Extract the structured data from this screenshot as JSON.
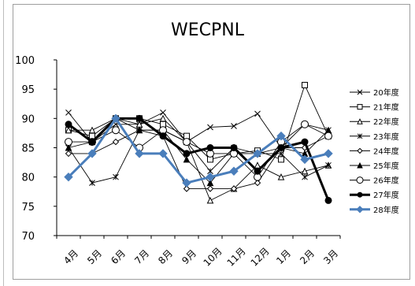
{
  "chart_data": {
    "type": "line",
    "title": "WECPNL",
    "categories": [
      "4月",
      "5月",
      "6月",
      "7月",
      "8月",
      "9月",
      "10月",
      "11月",
      "12月",
      "1月",
      "2月",
      "3月"
    ],
    "ylim": [
      70,
      100
    ],
    "yticks": [
      70,
      75,
      80,
      85,
      90,
      95,
      100
    ],
    "grid": false,
    "legend_position": "right",
    "series": [
      {
        "name": "20年度",
        "marker": "x",
        "color": "#000000",
        "values": [
          91,
          86,
          89,
          89,
          91,
          86,
          88.5,
          88.7,
          90.8,
          85,
          89,
          88
        ]
      },
      {
        "name": "21年度",
        "marker": "square-open",
        "color": "#000000",
        "values": [
          88,
          87,
          90,
          90,
          89,
          87,
          83,
          84,
          84.5,
          83,
          95.7,
          87
        ]
      },
      {
        "name": "22年度",
        "marker": "triangle-open",
        "color": "#000000",
        "values": [
          88,
          88,
          90,
          89,
          90,
          86,
          76,
          78,
          82,
          80,
          81,
          82
        ]
      },
      {
        "name": "23年度",
        "marker": "asterisk",
        "color": "#000000",
        "values": [
          85,
          79,
          80,
          88,
          88,
          86,
          81,
          85,
          84,
          84,
          80,
          82
        ]
      },
      {
        "name": "24年度",
        "marker": "diamond-open",
        "color": "#000000",
        "values": [
          84,
          84,
          86,
          88,
          87,
          78,
          78,
          78,
          79,
          85,
          85,
          87
        ]
      },
      {
        "name": "25年度",
        "marker": "triangle-filled",
        "color": "#000000",
        "values": [
          85,
          86,
          90,
          88,
          88,
          83,
          79,
          84,
          84,
          85,
          84,
          88
        ]
      },
      {
        "name": "26年度",
        "marker": "circle-open",
        "color": "#000000",
        "values": [
          86,
          86,
          88,
          85,
          88,
          86,
          84,
          84,
          80,
          86,
          89,
          87
        ]
      },
      {
        "name": "27年度",
        "marker": "circle-filled",
        "color": "#000000",
        "values": [
          89,
          86,
          90,
          90,
          87,
          84,
          85,
          85,
          81,
          85,
          86,
          76
        ],
        "bold": true
      },
      {
        "name": "28年度",
        "marker": "diamond-filled",
        "color": "#4a7ebb",
        "values": [
          80,
          84,
          90,
          84,
          84,
          79,
          80,
          81,
          84,
          87,
          83,
          84
        ],
        "bold": true
      }
    ]
  }
}
